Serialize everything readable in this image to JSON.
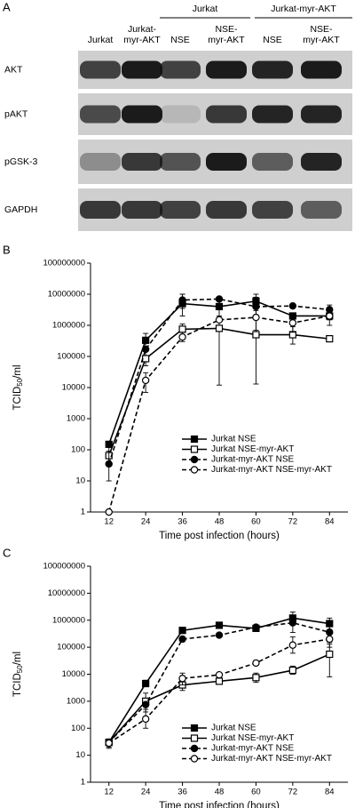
{
  "blot": {
    "panel_label": "A",
    "group_headers": [
      "Jurkat",
      "Jurkat-myr-AKT"
    ],
    "lanes": [
      [
        "Jurkat"
      ],
      [
        "Jurkat-",
        "myr-AKT"
      ],
      [
        "NSE"
      ],
      [
        "NSE-",
        "myr-AKT"
      ],
      [
        "NSE"
      ],
      [
        "NSE-",
        "myr-AKT"
      ]
    ],
    "rows": [
      "AKT",
      "pAKT",
      "pGSK-3",
      "GAPDH"
    ]
  },
  "chart_data": [
    {
      "type": "line",
      "panel_label": "B",
      "x_label": "Time post infection (hours)",
      "y_label": {
        "main": "TCID",
        "sub": "50",
        "unit": "/ml"
      },
      "x": [
        12,
        24,
        36,
        48,
        60,
        72,
        84
      ],
      "xlim": [
        6,
        90
      ],
      "xticks": [
        12,
        24,
        36,
        48,
        60,
        72,
        84
      ],
      "y_scale": "log",
      "ylim": [
        1,
        100000000
      ],
      "yticks": [
        1,
        10,
        100,
        1000,
        10000,
        100000,
        1000000,
        10000000,
        100000000
      ],
      "series": [
        {
          "name": "Jurkat NSE",
          "color": "#000",
          "marker": "square",
          "filled": true,
          "dashed": false,
          "values": [
            150,
            330000,
            5000000,
            4000000,
            6000000,
            2000000,
            2000000
          ],
          "err": [
            null,
            [
              150000,
              550000
            ],
            [
              2000000,
              10000000
            ],
            null,
            [
              3000000,
              10000000
            ],
            null,
            [
              1500000,
              3000000
            ]
          ]
        },
        {
          "name": "Jurkat NSE-myr-AKT",
          "color": "#000",
          "marker": "square",
          "filled": false,
          "dashed": false,
          "values": [
            65,
            85000,
            750000,
            800000,
            500000,
            500000,
            370000
          ],
          "err": [
            [
              30,
              150
            ],
            [
              50000,
              150000
            ],
            [
              500000,
              1100000
            ],
            [
              12000,
              8000000
            ],
            [
              13000,
              8000000
            ],
            [
              250000,
              900000
            ],
            null
          ]
        },
        {
          "name": "Jurkat-myr-AKT NSE",
          "color": "#000",
          "marker": "circle",
          "filled": true,
          "dashed": true,
          "values": [
            35,
            170000,
            6500000,
            7000000,
            4000000,
            4200000,
            3200000
          ],
          "err": [
            [
              10,
              90
            ],
            null,
            [
              3500000,
              10000000
            ],
            null,
            [
              2000000,
              8000000
            ],
            null,
            [
              2000000,
              4500000
            ]
          ]
        },
        {
          "name": "Jurkat-myr-AKT NSE-myr-AKT",
          "color": "#000",
          "marker": "circle",
          "filled": false,
          "dashed": true,
          "values": [
            1,
            17000,
            420000,
            1500000,
            1800000,
            1200000,
            2000000
          ],
          "err": [
            null,
            [
              7000,
              30000
            ],
            [
              300000,
              600000
            ],
            [
              1000000,
              2000000
            ],
            [
              700000,
              4000000
            ],
            [
              600000,
              2000000
            ],
            [
              1000000,
              3500000
            ]
          ]
        }
      ]
    },
    {
      "type": "line",
      "panel_label": "C",
      "x_label": "Time post infection (hours)",
      "y_label": {
        "main": "TCID",
        "sub": "50",
        "unit": "/ml"
      },
      "x": [
        12,
        24,
        36,
        48,
        60,
        72,
        84
      ],
      "xlim": [
        6,
        90
      ],
      "xticks": [
        12,
        24,
        36,
        48,
        60,
        72,
        84
      ],
      "y_scale": "log",
      "ylim": [
        1,
        100000000
      ],
      "yticks": [
        1,
        10,
        100,
        1000,
        10000,
        100000,
        1000000,
        10000000,
        100000000
      ],
      "series": [
        {
          "name": "Jurkat NSE",
          "color": "#000",
          "marker": "square",
          "filled": true,
          "dashed": false,
          "values": [
            30,
            4500,
            420000,
            650000,
            500000,
            1200000,
            750000
          ],
          "err": [
            null,
            [
              3500,
              6000
            ],
            null,
            null,
            null,
            [
              700000,
              2000000
            ],
            [
              450000,
              1200000
            ]
          ]
        },
        {
          "name": "Jurkat NSE-myr-AKT",
          "color": "#000",
          "marker": "square",
          "filled": false,
          "dashed": false,
          "values": [
            30,
            1000,
            4000,
            5500,
            7500,
            14000,
            55000
          ],
          "err": [
            [
              20,
              40
            ],
            [
              400,
              2000
            ],
            [
              2500,
              6500
            ],
            null,
            [
              5000,
              11000
            ],
            [
              10000,
              20000
            ],
            [
              8000,
              130000
            ]
          ]
        },
        {
          "name": "Jurkat-myr-AKT NSE",
          "color": "#000",
          "marker": "circle",
          "filled": true,
          "dashed": true,
          "values": [
            30,
            750,
            200000,
            280000,
            550000,
            800000,
            360000
          ],
          "err": [
            null,
            null,
            null,
            null,
            null,
            [
              350000,
              1500000
            ],
            [
              150000,
              700000
            ]
          ]
        },
        {
          "name": "Jurkat-myr-AKT NSE-myr-AKT",
          "color": "#000",
          "marker": "circle",
          "filled": false,
          "dashed": true,
          "values": [
            28,
            220,
            7000,
            9500,
            26000,
            120000,
            200000
          ],
          "err": [
            [
              18,
              40
            ],
            [
              100,
              500
            ],
            [
              4000,
              11000
            ],
            null,
            null,
            [
              60000,
              240000
            ],
            [
              100000,
              300000
            ]
          ]
        }
      ]
    }
  ]
}
